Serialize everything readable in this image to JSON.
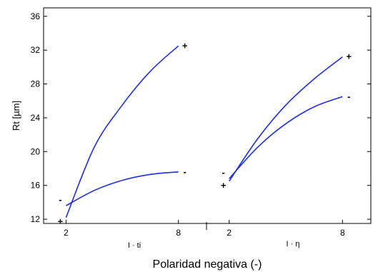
{
  "chart_data": {
    "type": "line",
    "title": "",
    "xlabel": "Polaridad negativa (-)",
    "ylabel": "Rt [µm]",
    "ylim": [
      11.5,
      37
    ],
    "yticks": [
      12,
      16,
      20,
      24,
      28,
      32,
      36
    ],
    "grid": false,
    "line_color": "#1f2fe0",
    "panels": [
      {
        "factor_label": "I · ti",
        "x_ticks": [
          2,
          8
        ],
        "xlim": [
          0.8,
          9.5
        ],
        "series": [
          {
            "marker": "+",
            "x": [
              2,
              3.5,
              5,
              6.5,
              8
            ],
            "y": [
              12.2,
              20.5,
              25.5,
              29.5,
              32.5
            ]
          },
          {
            "marker": "-",
            "x": [
              2,
              3.5,
              5,
              6.5,
              8
            ],
            "y": [
              13.6,
              15.4,
              16.6,
              17.3,
              17.6
            ]
          }
        ]
      },
      {
        "factor_label": "I · η",
        "x_ticks": [
          2,
          8
        ],
        "xlim": [
          0.8,
          9.5
        ],
        "series": [
          {
            "marker": "+",
            "x": [
              2,
              3.5,
              5,
              6.5,
              8
            ],
            "y": [
              16.5,
              21.5,
              25.5,
              28.6,
              31.2
            ]
          },
          {
            "marker": "-",
            "x": [
              2,
              3.5,
              5,
              6.5,
              8
            ],
            "y": [
              16.8,
              20.5,
              23.3,
              25.3,
              26.5
            ]
          }
        ]
      }
    ]
  }
}
